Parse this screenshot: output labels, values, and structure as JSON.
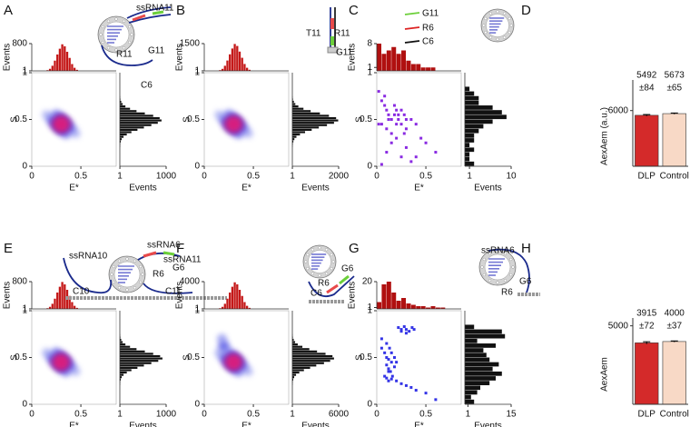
{
  "chart_data": [
    {
      "type": "hist2d",
      "panel": "A",
      "xlabel": "E*",
      "ylabel": "S",
      "xlim": [
        0,
        0.86
      ],
      "ylim": [
        0,
        1
      ],
      "xticks": [
        0,
        0.5
      ],
      "yticks": [
        0,
        0.5,
        1
      ],
      "density": {
        "x": [
          0.3,
          0.25,
          0.35,
          0.3,
          0.3,
          0.2,
          0.4,
          0.25,
          0.35,
          0.15,
          0.45
        ],
        "y": [
          0.45,
          0.45,
          0.45,
          0.5,
          0.4,
          0.5,
          0.4,
          0.55,
          0.35,
          0.55,
          0.35
        ],
        "counts": [
          900,
          600,
          600,
          550,
          550,
          250,
          250,
          200,
          200,
          60,
          60
        ]
      },
      "top_hist": {
        "ylabel": "Events",
        "bins": [
          0.15,
          0.175,
          0.2,
          0.225,
          0.25,
          0.275,
          0.3,
          0.325,
          0.35,
          0.375,
          0.4,
          0.425,
          0.45,
          0.475
        ],
        "counts": [
          20,
          60,
          150,
          300,
          480,
          650,
          780,
          720,
          560,
          380,
          200,
          90,
          30
        ],
        "ylim": [
          0,
          800
        ],
        "yticks": [
          1,
          800
        ],
        "color": "#c41818"
      },
      "right_hist": {
        "xlabel": "Events",
        "bins": [
          0.2,
          0.225,
          0.25,
          0.275,
          0.3,
          0.325,
          0.35,
          0.375,
          0.4,
          0.425,
          0.45,
          0.475,
          0.5,
          0.525,
          0.55,
          0.575,
          0.6,
          0.625,
          0.65,
          0.675,
          0.7,
          0.725,
          0.75
        ],
        "counts": [
          5,
          10,
          20,
          40,
          80,
          150,
          250,
          380,
          520,
          680,
          820,
          900,
          860,
          720,
          540,
          360,
          220,
          120,
          60,
          30,
          12,
          5
        ],
        "xlim": [
          0,
          1000
        ],
        "xticks": [
          1,
          1000
        ],
        "color": "#111111"
      },
      "annotations": [
        "ssRNA11",
        "R11",
        "G11",
        "C6"
      ]
    },
    {
      "type": "hist2d",
      "panel": "B",
      "xlabel": "E*",
      "ylabel": "S",
      "xlim": [
        0,
        0.86
      ],
      "ylim": [
        0,
        1
      ],
      "xticks": [
        0,
        0.5
      ],
      "yticks": [
        0,
        0.5,
        1
      ],
      "density": {
        "x": [
          0.3,
          0.25,
          0.35,
          0.3,
          0.3,
          0.2,
          0.4,
          0.25,
          0.35,
          0.15,
          0.45
        ],
        "y": [
          0.45,
          0.45,
          0.45,
          0.5,
          0.4,
          0.5,
          0.4,
          0.55,
          0.35,
          0.55,
          0.35
        ],
        "counts": [
          1700,
          1150,
          1100,
          1000,
          1050,
          450,
          480,
          380,
          400,
          110,
          120
        ]
      },
      "top_hist": {
        "ylabel": "Events",
        "bins": [
          0.15,
          0.175,
          0.2,
          0.225,
          0.25,
          0.275,
          0.3,
          0.325,
          0.35,
          0.375,
          0.4,
          0.425,
          0.45,
          0.475
        ],
        "counts": [
          40,
          110,
          280,
          570,
          910,
          1230,
          1480,
          1370,
          1060,
          720,
          380,
          170,
          60
        ],
        "ylim": [
          0,
          1500
        ],
        "yticks": [
          1,
          1500
        ],
        "color": "#c41818"
      },
      "right_hist": {
        "xlabel": "Events",
        "bins": [
          0.2,
          0.225,
          0.25,
          0.275,
          0.3,
          0.325,
          0.35,
          0.375,
          0.4,
          0.425,
          0.45,
          0.475,
          0.5,
          0.525,
          0.55,
          0.575,
          0.6,
          0.625,
          0.65,
          0.675,
          0.7,
          0.725,
          0.75
        ],
        "counts": [
          10,
          22,
          44,
          88,
          176,
          330,
          550,
          836,
          1144,
          1496,
          1800,
          1980,
          1890,
          1580,
          1190,
          790,
          480,
          260,
          130,
          66,
          26,
          11
        ],
        "xlim": [
          0,
          2000
        ],
        "xticks": [
          1,
          2000
        ],
        "color": "#111111"
      },
      "annotations": [
        "T11",
        "R11",
        "G11"
      ]
    },
    {
      "type": "scatter",
      "panel": "C",
      "xlabel": "E*",
      "ylabel": "S",
      "xlim": [
        0,
        0.86
      ],
      "ylim": [
        0,
        1
      ],
      "xticks": [
        0,
        0.5
      ],
      "yticks": [
        0,
        0.5,
        1
      ],
      "color": "#8a2be2",
      "x": [
        0.02,
        0.05,
        0.08,
        0.1,
        0.12,
        0.15,
        0.18,
        0.2,
        0.22,
        0.25,
        0.28,
        0.3,
        0.05,
        0.1,
        0.15,
        0.2,
        0.25,
        0.3,
        0.35,
        0.08,
        0.12,
        0.18,
        0.22,
        0.28,
        0.4,
        0.45,
        0.15,
        0.2,
        0.1,
        0.3,
        0.5,
        0.35,
        0.05,
        0.25,
        0.4,
        0.6,
        0.02
      ],
      "y": [
        0.8,
        0.7,
        0.65,
        0.6,
        0.55,
        0.5,
        0.55,
        0.6,
        0.5,
        0.45,
        0.55,
        0.5,
        0.45,
        0.4,
        0.35,
        0.45,
        0.6,
        0.4,
        0.5,
        0.75,
        0.5,
        0.65,
        0.55,
        0.35,
        0.45,
        0.3,
        0.25,
        0.3,
        0.15,
        0.2,
        0.25,
        0.05,
        0.02,
        0.1,
        0.1,
        0.15,
        0.45
      ],
      "top_hist": {
        "ylabel": "Events",
        "bins": [
          0,
          0.05,
          0.1,
          0.15,
          0.2,
          0.25,
          0.3,
          0.35,
          0.4,
          0.45,
          0.5,
          0.55,
          0.6
        ],
        "counts": [
          8,
          5,
          6,
          7,
          5,
          6,
          3,
          2,
          2,
          1,
          1,
          1
        ],
        "ylim": [
          0,
          8
        ],
        "yticks": [
          1,
          8
        ],
        "color": "#b01010"
      },
      "right_hist": {
        "xlabel": "Events",
        "bins": [
          0,
          0.05,
          0.1,
          0.15,
          0.2,
          0.25,
          0.3,
          0.35,
          0.4,
          0.45,
          0.5,
          0.55,
          0.6,
          0.65,
          0.7,
          0.75,
          0.8,
          0.85
        ],
        "counts": [
          2,
          1,
          1,
          2,
          1,
          2,
          2,
          3,
          4,
          6,
          9,
          8,
          6,
          3,
          3,
          2,
          1
        ],
        "xlim": [
          0,
          10
        ],
        "xticks": [
          1,
          10
        ],
        "color": "#111111"
      },
      "annotations": [
        "G11",
        "R6",
        "C6"
      ]
    },
    {
      "type": "bar",
      "panel": "D",
      "ylabel": "AexAem (a.u.)",
      "categories": [
        "DLP",
        "Control"
      ],
      "values": [
        5492,
        5673
      ],
      "errors": [
        84,
        65
      ],
      "error_labels": [
        "±84",
        "±65"
      ],
      "colors": [
        "#d42a2a",
        "#f8d9c6"
      ],
      "ylim": [
        0,
        9300
      ],
      "yticks": [
        6000
      ]
    },
    {
      "type": "hist2d",
      "panel": "E",
      "xlabel": "E*",
      "ylabel": "S",
      "xlim": [
        0,
        0.86
      ],
      "ylim": [
        0,
        1
      ],
      "xticks": [
        0,
        0.5
      ],
      "yticks": [
        0,
        0.5,
        1
      ],
      "density": {
        "x": [
          0.3,
          0.25,
          0.35,
          0.3,
          0.3,
          0.2,
          0.4,
          0.25,
          0.35,
          0.15,
          0.45
        ],
        "y": [
          0.45,
          0.45,
          0.45,
          0.5,
          0.4,
          0.5,
          0.4,
          0.55,
          0.35,
          0.55,
          0.35
        ],
        "counts": [
          900,
          620,
          580,
          560,
          540,
          260,
          240,
          210,
          190,
          70,
          50
        ]
      },
      "top_hist": {
        "ylabel": "Events",
        "bins": [
          0.15,
          0.175,
          0.2,
          0.225,
          0.25,
          0.275,
          0.3,
          0.325,
          0.35,
          0.375,
          0.4,
          0.425,
          0.45,
          0.475
        ],
        "counts": [
          20,
          60,
          150,
          300,
          480,
          650,
          790,
          720,
          560,
          380,
          200,
          90,
          30
        ],
        "ylim": [
          0,
          800
        ],
        "yticks": [
          1,
          800
        ],
        "color": "#c41818"
      },
      "right_hist": {
        "xlabel": "Events",
        "bins": [
          0.2,
          0.225,
          0.25,
          0.275,
          0.3,
          0.325,
          0.35,
          0.375,
          0.4,
          0.425,
          0.45,
          0.475,
          0.5,
          0.525,
          0.55,
          0.575,
          0.6,
          0.625,
          0.65,
          0.675,
          0.7,
          0.725,
          0.75
        ],
        "counts": [
          5,
          10,
          20,
          40,
          80,
          150,
          250,
          380,
          520,
          680,
          830,
          920,
          870,
          720,
          540,
          360,
          220,
          120,
          60,
          30,
          12,
          5
        ],
        "xlim": [
          0,
          1000
        ],
        "xticks": [
          1,
          1000
        ],
        "color": "#111111"
      },
      "annotations": [
        "ssRNA6",
        "R6",
        "G6",
        "ssRNA10",
        "C10",
        "ssRNA11",
        "C11"
      ]
    },
    {
      "type": "hist2d",
      "panel": "F",
      "xlabel": "E*",
      "ylabel": "S",
      "xlim": [
        0,
        0.86
      ],
      "ylim": [
        0,
        1
      ],
      "xticks": [
        0,
        0.5
      ],
      "yticks": [
        0,
        0.5,
        1
      ],
      "density": {
        "x": [
          0.3,
          0.25,
          0.35,
          0.3,
          0.3,
          0.2,
          0.4,
          0.25,
          0.35,
          0.15,
          0.45,
          0.2,
          0.18
        ],
        "y": [
          0.45,
          0.45,
          0.45,
          0.5,
          0.4,
          0.5,
          0.4,
          0.55,
          0.35,
          0.55,
          0.35,
          0.62,
          0.7
        ],
        "counts": [
          5000,
          3400,
          3200,
          3000,
          2900,
          1400,
          1300,
          1100,
          1000,
          350,
          300,
          1700,
          700
        ]
      },
      "top_hist": {
        "ylabel": "Events",
        "bins": [
          0.15,
          0.175,
          0.2,
          0.225,
          0.25,
          0.275,
          0.3,
          0.325,
          0.35,
          0.375,
          0.4,
          0.425,
          0.45,
          0.475
        ],
        "counts": [
          100,
          300,
          750,
          1500,
          2400,
          3250,
          3900,
          3600,
          2800,
          1900,
          1000,
          450,
          150
        ],
        "ylim": [
          0,
          4000
        ],
        "yticks": [
          1,
          4000
        ],
        "color": "#c41818"
      },
      "right_hist": {
        "xlabel": "Events",
        "bins": [
          0.2,
          0.225,
          0.25,
          0.275,
          0.3,
          0.325,
          0.35,
          0.375,
          0.4,
          0.425,
          0.45,
          0.475,
          0.5,
          0.525,
          0.55,
          0.575,
          0.6,
          0.625,
          0.65,
          0.675,
          0.7,
          0.725,
          0.75
        ],
        "counts": [
          30,
          60,
          120,
          240,
          480,
          900,
          1500,
          2300,
          3100,
          4100,
          4900,
          5400,
          5200,
          4300,
          3200,
          2200,
          1300,
          700,
          360,
          180,
          70,
          30
        ],
        "xlim": [
          0,
          6000
        ],
        "xticks": [
          1,
          6000
        ],
        "color": "#111111"
      },
      "annotations": [
        "G6",
        "R6",
        "C6"
      ]
    },
    {
      "type": "scatter",
      "panel": "G",
      "xlabel": "E*",
      "ylabel": "S",
      "xlim": [
        0,
        0.86
      ],
      "ylim": [
        0,
        1
      ],
      "xticks": [
        0,
        0.5
      ],
      "yticks": [
        0,
        0.5,
        1
      ],
      "color": "#3434e6",
      "x": [
        0.22,
        0.25,
        0.28,
        0.3,
        0.33,
        0.36,
        0.38,
        0.25,
        0.3,
        0.05,
        0.08,
        0.1,
        0.12,
        0.15,
        0.18,
        0.1,
        0.12,
        0.14,
        0.16,
        0.08,
        0.1,
        0.12,
        0.15,
        0.2,
        0.25,
        0.3,
        0.35,
        0.4,
        0.1,
        0.13,
        0.15,
        0.18,
        0.5,
        0.6,
        0.05,
        0.12,
        0.2
      ],
      "y": [
        0.82,
        0.8,
        0.83,
        0.8,
        0.78,
        0.82,
        0.8,
        0.78,
        0.76,
        0.6,
        0.55,
        0.5,
        0.48,
        0.45,
        0.4,
        0.42,
        0.38,
        0.35,
        0.3,
        0.3,
        0.28,
        0.25,
        0.27,
        0.25,
        0.22,
        0.2,
        0.18,
        0.15,
        0.65,
        0.6,
        0.55,
        0.5,
        0.12,
        0.05,
        0.7,
        0.35,
        0.45
      ],
      "top_hist": {
        "ylabel": "Events",
        "bins": [
          0,
          0.05,
          0.1,
          0.15,
          0.2,
          0.25,
          0.3,
          0.35,
          0.4,
          0.45,
          0.5,
          0.55,
          0.6,
          0.65,
          0.7
        ],
        "counts": [
          5,
          18,
          20,
          12,
          6,
          8,
          4,
          3,
          2,
          2,
          1,
          2,
          1,
          1
        ],
        "ylim": [
          0,
          20
        ],
        "yticks": [
          1,
          20
        ],
        "color": "#b01010"
      },
      "right_hist": {
        "xlabel": "Events",
        "bins": [
          0,
          0.05,
          0.1,
          0.15,
          0.2,
          0.25,
          0.3,
          0.35,
          0.4,
          0.45,
          0.5,
          0.55,
          0.6,
          0.65,
          0.7,
          0.75,
          0.8,
          0.85
        ],
        "counts": [
          3,
          2,
          4,
          5,
          8,
          10,
          12,
          9,
          11,
          8,
          7,
          6,
          10,
          4,
          13,
          12,
          3
        ],
        "xlim": [
          0,
          15
        ],
        "xticks": [
          1,
          15
        ],
        "color": "#111111"
      },
      "annotations": [
        "ssRNA6",
        "R6",
        "G6"
      ]
    },
    {
      "type": "bar",
      "panel": "H",
      "ylabel": "AexAem",
      "categories": [
        "DLP",
        "Control"
      ],
      "values": [
        3915,
        4000
      ],
      "errors": [
        72,
        37
      ],
      "error_labels": [
        "±72",
        "±37"
      ],
      "colors": [
        "#d42a2a",
        "#f8d9c6"
      ],
      "ylim": [
        0,
        5500
      ],
      "yticks": [
        5000
      ]
    }
  ]
}
